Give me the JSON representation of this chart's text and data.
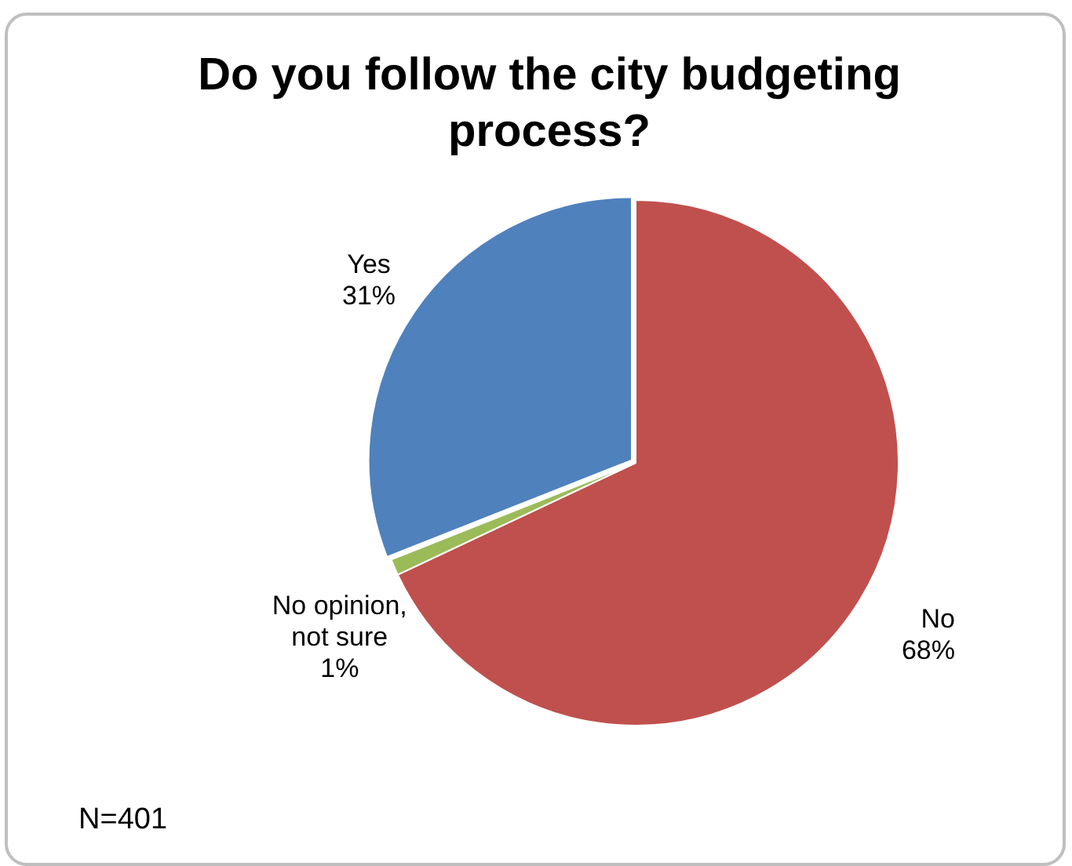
{
  "chart_data": {
    "type": "pie",
    "title": "Do you follow the city budgeting process?",
    "categories": [
      "No",
      "No opinion, not sure",
      "Yes"
    ],
    "values": [
      68,
      1,
      31
    ],
    "colors": [
      "#c0504d",
      "#9bbb59",
      "#4f81bd"
    ],
    "value_labels": [
      "68%",
      "1%",
      "31%"
    ],
    "legend": false,
    "annotations": [
      "N=401"
    ]
  }
}
